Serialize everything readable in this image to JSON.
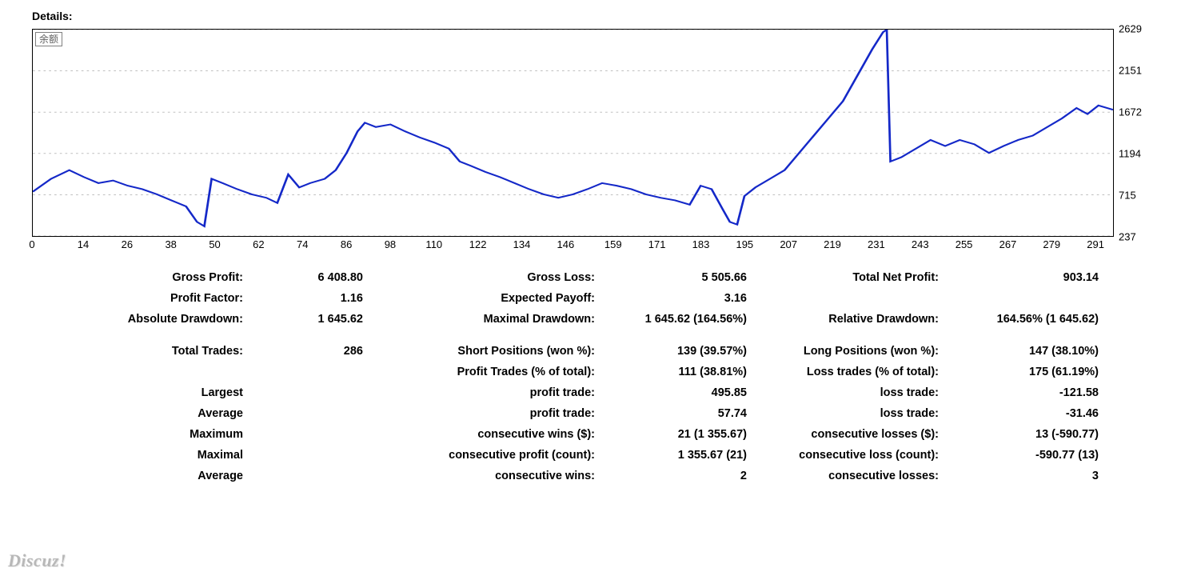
{
  "title": "Details:",
  "watermark": "Discuz!",
  "chart": {
    "type": "line",
    "legend_label": "余额",
    "line_color": "#1428c8",
    "line_width": 2,
    "grid_color": "#c0c0c0",
    "background_color": "#ffffff",
    "border_color": "#000000",
    "x_min": 0,
    "x_max": 296,
    "y_min": 237,
    "y_max": 2629,
    "y_ticks": [
      237,
      715,
      1194,
      1672,
      2151,
      2629
    ],
    "x_ticks": [
      0,
      14,
      26,
      38,
      50,
      62,
      74,
      86,
      98,
      110,
      122,
      134,
      146,
      159,
      171,
      183,
      195,
      207,
      219,
      231,
      243,
      255,
      267,
      279,
      291
    ],
    "series": [
      {
        "x": 0,
        "y": 750
      },
      {
        "x": 5,
        "y": 900
      },
      {
        "x": 10,
        "y": 1000
      },
      {
        "x": 14,
        "y": 920
      },
      {
        "x": 18,
        "y": 850
      },
      {
        "x": 22,
        "y": 880
      },
      {
        "x": 26,
        "y": 820
      },
      {
        "x": 30,
        "y": 780
      },
      {
        "x": 34,
        "y": 720
      },
      {
        "x": 38,
        "y": 650
      },
      {
        "x": 42,
        "y": 580
      },
      {
        "x": 45,
        "y": 400
      },
      {
        "x": 47,
        "y": 350
      },
      {
        "x": 49,
        "y": 900
      },
      {
        "x": 52,
        "y": 850
      },
      {
        "x": 56,
        "y": 780
      },
      {
        "x": 60,
        "y": 720
      },
      {
        "x": 64,
        "y": 680
      },
      {
        "x": 67,
        "y": 620
      },
      {
        "x": 70,
        "y": 950
      },
      {
        "x": 73,
        "y": 800
      },
      {
        "x": 76,
        "y": 850
      },
      {
        "x": 80,
        "y": 900
      },
      {
        "x": 83,
        "y": 1000
      },
      {
        "x": 86,
        "y": 1200
      },
      {
        "x": 89,
        "y": 1450
      },
      {
        "x": 91,
        "y": 1550
      },
      {
        "x": 94,
        "y": 1500
      },
      {
        "x": 98,
        "y": 1530
      },
      {
        "x": 102,
        "y": 1450
      },
      {
        "x": 106,
        "y": 1380
      },
      {
        "x": 110,
        "y": 1320
      },
      {
        "x": 114,
        "y": 1250
      },
      {
        "x": 117,
        "y": 1100
      },
      {
        "x": 120,
        "y": 1050
      },
      {
        "x": 124,
        "y": 980
      },
      {
        "x": 128,
        "y": 920
      },
      {
        "x": 132,
        "y": 850
      },
      {
        "x": 136,
        "y": 780
      },
      {
        "x": 140,
        "y": 720
      },
      {
        "x": 144,
        "y": 680
      },
      {
        "x": 148,
        "y": 720
      },
      {
        "x": 152,
        "y": 780
      },
      {
        "x": 156,
        "y": 850
      },
      {
        "x": 160,
        "y": 820
      },
      {
        "x": 164,
        "y": 780
      },
      {
        "x": 168,
        "y": 720
      },
      {
        "x": 172,
        "y": 680
      },
      {
        "x": 176,
        "y": 650
      },
      {
        "x": 180,
        "y": 600
      },
      {
        "x": 183,
        "y": 820
      },
      {
        "x": 186,
        "y": 780
      },
      {
        "x": 189,
        "y": 550
      },
      {
        "x": 191,
        "y": 400
      },
      {
        "x": 193,
        "y": 370
      },
      {
        "x": 195,
        "y": 700
      },
      {
        "x": 198,
        "y": 800
      },
      {
        "x": 202,
        "y": 900
      },
      {
        "x": 206,
        "y": 1000
      },
      {
        "x": 210,
        "y": 1200
      },
      {
        "x": 214,
        "y": 1400
      },
      {
        "x": 218,
        "y": 1600
      },
      {
        "x": 222,
        "y": 1800
      },
      {
        "x": 226,
        "y": 2100
      },
      {
        "x": 230,
        "y": 2400
      },
      {
        "x": 233,
        "y": 2600
      },
      {
        "x": 234,
        "y": 2629
      },
      {
        "x": 235,
        "y": 1100
      },
      {
        "x": 238,
        "y": 1150
      },
      {
        "x": 242,
        "y": 1250
      },
      {
        "x": 246,
        "y": 1350
      },
      {
        "x": 250,
        "y": 1280
      },
      {
        "x": 254,
        "y": 1350
      },
      {
        "x": 258,
        "y": 1300
      },
      {
        "x": 262,
        "y": 1200
      },
      {
        "x": 266,
        "y": 1280
      },
      {
        "x": 270,
        "y": 1350
      },
      {
        "x": 274,
        "y": 1400
      },
      {
        "x": 278,
        "y": 1500
      },
      {
        "x": 282,
        "y": 1600
      },
      {
        "x": 286,
        "y": 1720
      },
      {
        "x": 289,
        "y": 1650
      },
      {
        "x": 292,
        "y": 1750
      },
      {
        "x": 296,
        "y": 1700
      }
    ]
  },
  "stats": {
    "group1": [
      {
        "l1": "Gross Profit:",
        "v1": "6 408.80",
        "l2": "Gross Loss:",
        "v2": "5 505.66",
        "l3": "Total Net Profit:",
        "v3": "903.14"
      },
      {
        "l1": "Profit Factor:",
        "v1": "1.16",
        "l2": "Expected Payoff:",
        "v2": "3.16",
        "l3": "",
        "v3": ""
      },
      {
        "l1": "Absolute Drawdown:",
        "v1": "1 645.62",
        "l2": "Maximal Drawdown:",
        "v2": "1 645.62 (164.56%)",
        "l3": "Relative Drawdown:",
        "v3": "164.56% (1 645.62)"
      }
    ],
    "group2": [
      {
        "l1": "Total Trades:",
        "v1": "286",
        "l2": "Short Positions (won %):",
        "v2": "139 (39.57%)",
        "l3": "Long Positions (won %):",
        "v3": "147 (38.10%)"
      },
      {
        "l1": "",
        "v1": "",
        "l2": "Profit Trades (% of total):",
        "v2": "111 (38.81%)",
        "l3": "Loss trades (% of total):",
        "v3": "175 (61.19%)"
      },
      {
        "l1": "Largest",
        "v1": "",
        "l2": "profit trade:",
        "v2": "495.85",
        "l3": "loss trade:",
        "v3": "-121.58"
      },
      {
        "l1": "Average",
        "v1": "",
        "l2": "profit trade:",
        "v2": "57.74",
        "l3": "loss trade:",
        "v3": "-31.46"
      },
      {
        "l1": "Maximum",
        "v1": "",
        "l2": "consecutive wins ($):",
        "v2": "21 (1 355.67)",
        "l3": "consecutive losses ($):",
        "v3": "13 (-590.77)"
      },
      {
        "l1": "Maximal",
        "v1": "",
        "l2": "consecutive profit (count):",
        "v2": "1 355.67 (21)",
        "l3": "consecutive loss (count):",
        "v3": "-590.77 (13)"
      },
      {
        "l1": "Average",
        "v1": "",
        "l2": "consecutive wins:",
        "v2": "2",
        "l3": "consecutive losses:",
        "v3": "3"
      }
    ]
  }
}
